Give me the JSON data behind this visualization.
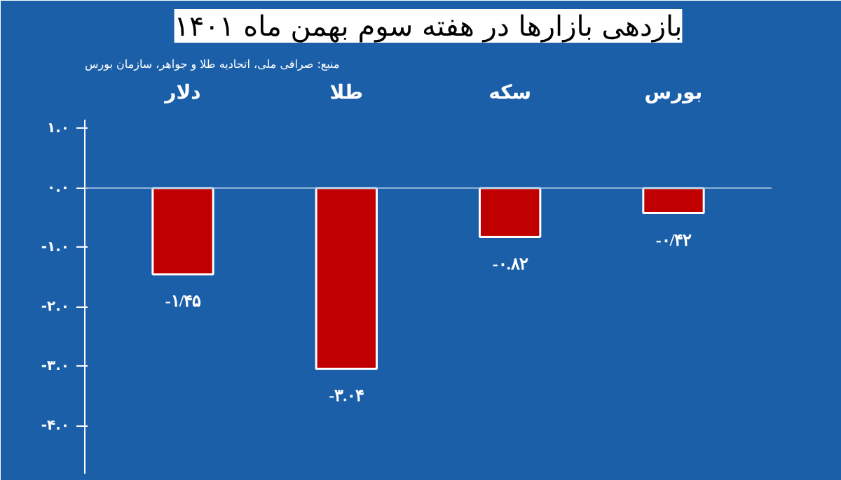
{
  "chart_data": {
    "type": "bar",
    "title": "بازدهی بازارها در هفته سوم بهمن ماه ۱۴۰۱",
    "annotations": [
      "منبع: صرافی ملی، اتحادیه طلا و جواهر، سازمان بورس"
    ],
    "categories": [
      "دلار",
      "طلا",
      "سکه",
      "بورس"
    ],
    "values": [
      -1.45,
      -3.04,
      -0.82,
      -0.42
    ],
    "value_labels": [
      "-۱/۴۵",
      "-۳.۰۴",
      "-۰.۸۲",
      "-۰/۴۲"
    ],
    "color": "#c00000",
    "ylim": [
      -4.8,
      1.15
    ],
    "yticks": [
      {
        "value": 1,
        "label": "۱.۰"
      },
      {
        "value": 0,
        "label": "۰.۰"
      },
      {
        "value": -1,
        "label": "-۱.۰"
      },
      {
        "value": -2,
        "label": "-۲.۰"
      },
      {
        "value": -3,
        "label": "-۳.۰"
      },
      {
        "value": -4,
        "label": "-۴.۰"
      }
    ],
    "ref_lines": [
      {
        "axis": "y",
        "value": 0,
        "color": "#9fbfe0"
      }
    ],
    "grid": false
  }
}
